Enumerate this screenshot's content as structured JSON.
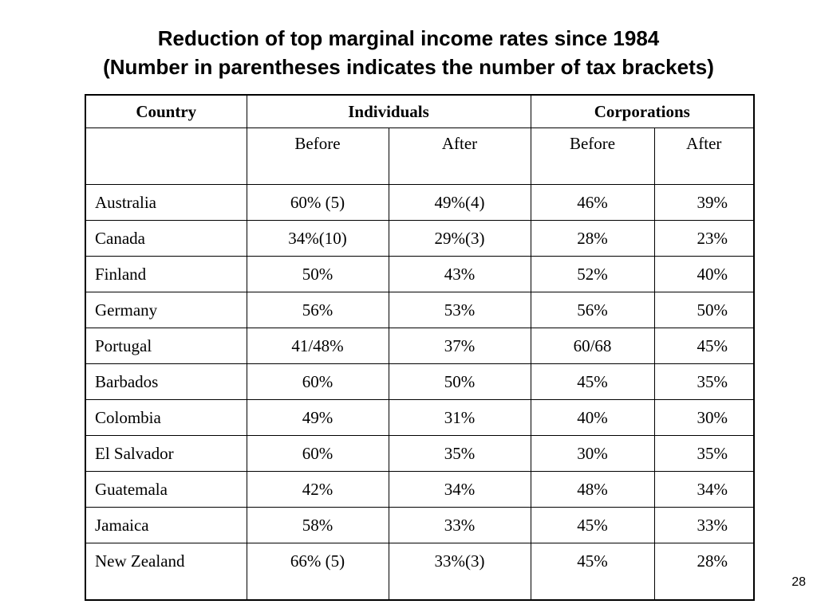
{
  "title": {
    "line1": "Reduction of top marginal income rates since 1984",
    "line2": "(Number in parentheses indicates the number of tax brackets)"
  },
  "table": {
    "headers": {
      "country": "Country",
      "individuals": "Individuals",
      "corporations": "Corporations",
      "sub": [
        "Before",
        "After",
        "Before",
        "After"
      ]
    },
    "rows": [
      {
        "country": "Australia",
        "ind_before": "60% (5)",
        "ind_after": "49%(4)",
        "corp_before": "46%",
        "corp_after": "39%"
      },
      {
        "country": "Canada",
        "ind_before": "34%(10)",
        "ind_after": "29%(3)",
        "corp_before": "28%",
        "corp_after": "23%"
      },
      {
        "country": "Finland",
        "ind_before": "50%",
        "ind_after": "43%",
        "corp_before": "52%",
        "corp_after": "40%"
      },
      {
        "country": "Germany",
        "ind_before": "56%",
        "ind_after": "53%",
        "corp_before": "56%",
        "corp_after": "50%"
      },
      {
        "country": "Portugal",
        "ind_before": "41/48%",
        "ind_after": "37%",
        "corp_before": "60/68",
        "corp_after": "45%"
      },
      {
        "country": "Barbados",
        "ind_before": "60%",
        "ind_after": "50%",
        "corp_before": "45%",
        "corp_after": "35%"
      },
      {
        "country": "Colombia",
        "ind_before": "49%",
        "ind_after": "31%",
        "corp_before": "40%",
        "corp_after": "30%"
      },
      {
        "country": "El Salvador",
        "ind_before": "60%",
        "ind_after": "35%",
        "corp_before": "30%",
        "corp_after": "35%"
      },
      {
        "country": "Guatemala",
        "ind_before": "42%",
        "ind_after": "34%",
        "corp_before": "48%",
        "corp_after": "34%"
      },
      {
        "country": "Jamaica",
        "ind_before": "58%",
        "ind_after": "33%",
        "corp_before": "45%",
        "corp_after": "33%"
      },
      {
        "country": "New Zealand",
        "ind_before": "66% (5)",
        "ind_after": "33%(3)",
        "corp_before": "45%",
        "corp_after": "28%"
      }
    ]
  },
  "page_number": "28"
}
